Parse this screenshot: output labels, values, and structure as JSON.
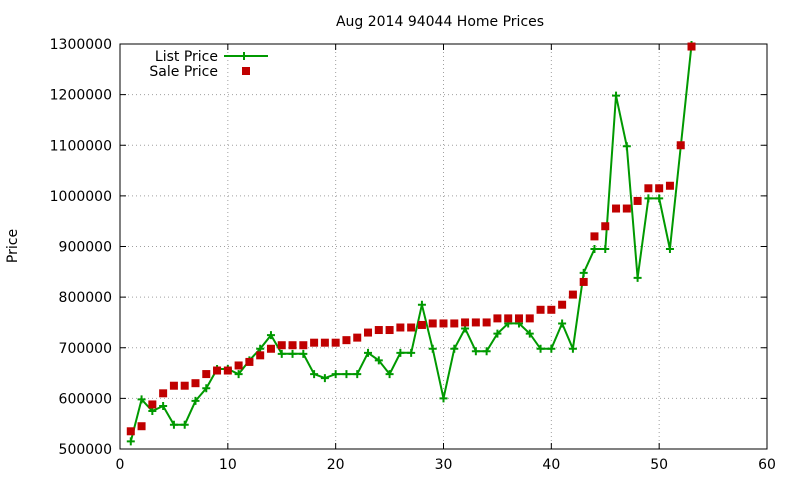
{
  "chart_data": {
    "type": "line",
    "title": "Aug 2014 94044 Home Prices",
    "xlabel": "",
    "ylabel": "Price",
    "xlim": [
      0,
      60
    ],
    "ylim": [
      500000,
      1300000
    ],
    "xticks": [
      0,
      10,
      20,
      30,
      40,
      50,
      60
    ],
    "xtick_labels": [
      "0",
      "10",
      "20",
      "30",
      "40",
      "50",
      "60"
    ],
    "yticks": [
      500000,
      600000,
      700000,
      800000,
      900000,
      1000000,
      1100000,
      1200000,
      1300000
    ],
    "ytick_labels": [
      "500000",
      "600000",
      "700000",
      "800000",
      "900000",
      "1000000",
      "1100000",
      "1200000",
      "1300000"
    ],
    "grid": true,
    "legend_position": "top-left",
    "series": [
      {
        "name": "List Price",
        "style": "line+plus",
        "color": "#009900",
        "points": [
          [
            1,
            515000
          ],
          [
            2,
            598000
          ],
          [
            3,
            575000
          ],
          [
            4,
            585000
          ],
          [
            5,
            548000
          ],
          [
            6,
            548000
          ],
          [
            7,
            595000
          ],
          [
            8,
            620000
          ],
          [
            9,
            658000
          ],
          [
            10,
            658000
          ],
          [
            11,
            648000
          ],
          [
            12,
            675000
          ],
          [
            13,
            698000
          ],
          [
            14,
            725000
          ],
          [
            15,
            688000
          ],
          [
            16,
            688000
          ],
          [
            17,
            688000
          ],
          [
            18,
            648000
          ],
          [
            19,
            640000
          ],
          [
            20,
            648000
          ],
          [
            21,
            648000
          ],
          [
            22,
            648000
          ],
          [
            23,
            690000
          ],
          [
            24,
            675000
          ],
          [
            25,
            648000
          ],
          [
            26,
            690000
          ],
          [
            27,
            690000
          ],
          [
            28,
            785000
          ],
          [
            29,
            698000
          ],
          [
            30,
            600000
          ],
          [
            31,
            698000
          ],
          [
            32,
            738000
          ],
          [
            33,
            693000
          ],
          [
            34,
            693000
          ],
          [
            35,
            728000
          ],
          [
            36,
            748000
          ],
          [
            37,
            748000
          ],
          [
            38,
            728000
          ],
          [
            39,
            698000
          ],
          [
            40,
            698000
          ],
          [
            41,
            748000
          ],
          [
            42,
            698000
          ],
          [
            43,
            848000
          ],
          [
            44,
            895000
          ],
          [
            45,
            895000
          ],
          [
            46,
            1198000
          ],
          [
            47,
            1098000
          ],
          [
            48,
            838000
          ],
          [
            49,
            995000
          ],
          [
            50,
            995000
          ],
          [
            51,
            895000
          ],
          [
            53,
            1298000
          ]
        ]
      },
      {
        "name": "Sale Price",
        "style": "square",
        "color": "#c00000",
        "points": [
          [
            1,
            535000
          ],
          [
            2,
            545000
          ],
          [
            3,
            588000
          ],
          [
            4,
            610000
          ],
          [
            5,
            625000
          ],
          [
            6,
            625000
          ],
          [
            7,
            630000
          ],
          [
            8,
            648000
          ],
          [
            9,
            655000
          ],
          [
            10,
            655000
          ],
          [
            11,
            665000
          ],
          [
            12,
            672000
          ],
          [
            13,
            685000
          ],
          [
            14,
            698000
          ],
          [
            15,
            705000
          ],
          [
            16,
            705000
          ],
          [
            17,
            705000
          ],
          [
            18,
            710000
          ],
          [
            19,
            710000
          ],
          [
            20,
            710000
          ],
          [
            21,
            715000
          ],
          [
            22,
            720000
          ],
          [
            23,
            730000
          ],
          [
            24,
            735000
          ],
          [
            25,
            735000
          ],
          [
            26,
            740000
          ],
          [
            27,
            740000
          ],
          [
            28,
            745000
          ],
          [
            29,
            748000
          ],
          [
            30,
            748000
          ],
          [
            31,
            748000
          ],
          [
            32,
            750000
          ],
          [
            33,
            750000
          ],
          [
            34,
            750000
          ],
          [
            35,
            758000
          ],
          [
            36,
            758000
          ],
          [
            37,
            758000
          ],
          [
            38,
            758000
          ],
          [
            39,
            775000
          ],
          [
            40,
            775000
          ],
          [
            41,
            785000
          ],
          [
            42,
            805000
          ],
          [
            43,
            830000
          ],
          [
            44,
            920000
          ],
          [
            45,
            940000
          ],
          [
            46,
            975000
          ],
          [
            47,
            975000
          ],
          [
            48,
            990000
          ],
          [
            49,
            1015000
          ],
          [
            50,
            1015000
          ],
          [
            51,
            1020000
          ],
          [
            52,
            1100000
          ],
          [
            53,
            1295000
          ]
        ]
      }
    ]
  }
}
